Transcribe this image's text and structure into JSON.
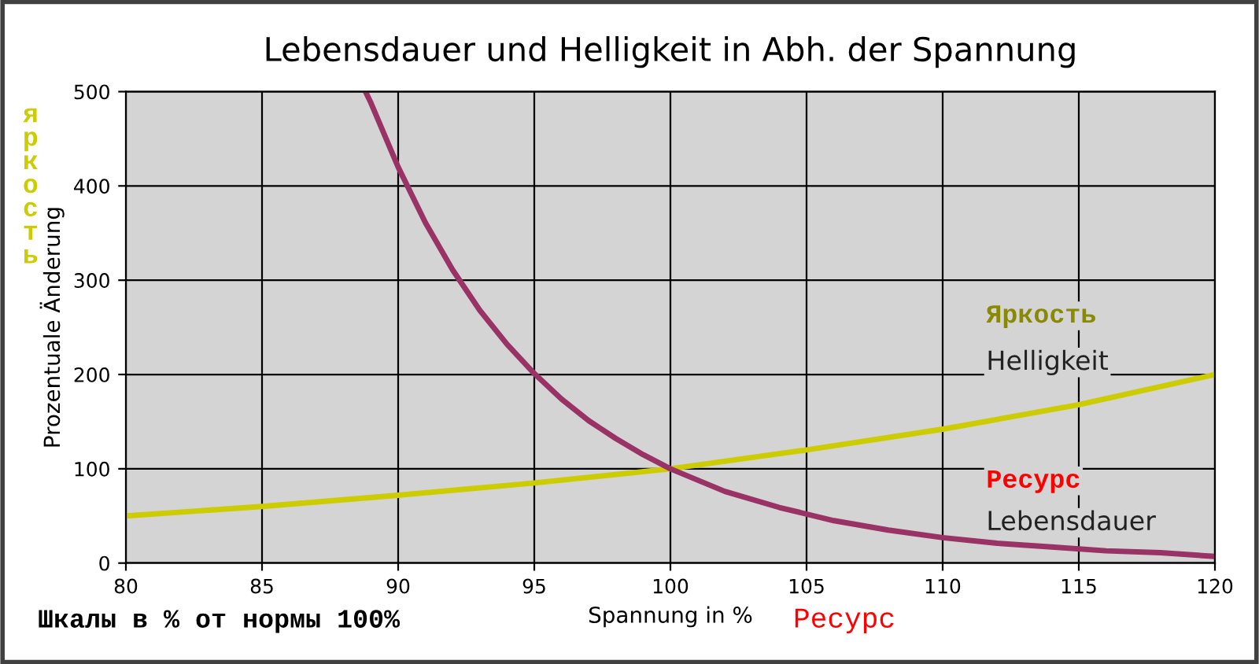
{
  "chart_data": {
    "type": "line",
    "title": "Lebensdauer und Helligkeit in Abh. der Spannung",
    "xlabel": "Spannung in %",
    "ylabel": "Prozentuale Änderung",
    "xlim": [
      80,
      120
    ],
    "xticks": [
      80,
      85,
      90,
      95,
      100,
      105,
      110,
      115,
      120
    ],
    "ylim": [
      0,
      500
    ],
    "yticks": [
      0,
      100,
      200,
      300,
      400,
      500
    ],
    "grid": true,
    "legend": false,
    "series": [
      {
        "name": "Helligkeit",
        "color": "#cccc00",
        "x": [
          80,
          85,
          90,
          95,
          100,
          105,
          110,
          115,
          120
        ],
        "values": [
          50,
          60,
          72,
          85,
          100,
          120,
          142,
          168,
          200
        ]
      },
      {
        "name": "Lebensdauer",
        "color": "#993366",
        "x": [
          88.8,
          89,
          90,
          91,
          92,
          93,
          94,
          95,
          96,
          97,
          98,
          99,
          100,
          102,
          104,
          106,
          108,
          110,
          112,
          114,
          116,
          118,
          120
        ],
        "values": [
          500,
          488,
          420,
          361,
          311,
          268,
          232,
          201,
          174,
          151,
          132,
          115,
          100,
          76,
          59,
          45,
          35,
          27,
          21,
          17,
          13,
          11,
          7
        ]
      }
    ],
    "annotations": [
      "Яркость",
      "Ресурс",
      "яркость",
      "Ресурс",
      "Шкалы в % от нормы 100%"
    ]
  }
}
